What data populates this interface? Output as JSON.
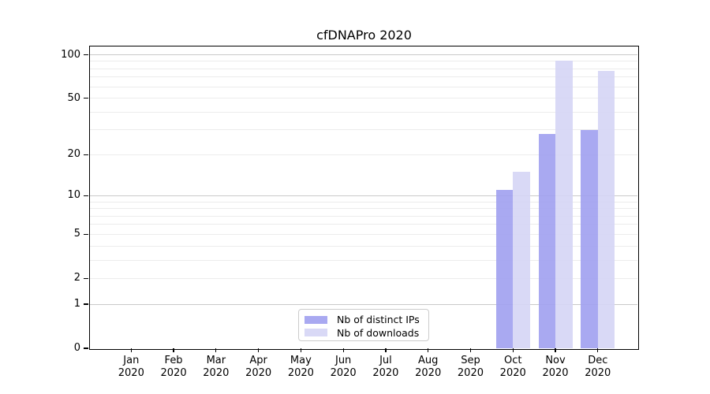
{
  "chart_data": {
    "type": "bar",
    "title": "cfDNAPro 2020",
    "categories": [
      "Jan 2020",
      "Feb 2020",
      "Mar 2020",
      "Apr 2020",
      "May 2020",
      "Jun 2020",
      "Jul 2020",
      "Aug 2020",
      "Sep 2020",
      "Oct 2020",
      "Nov 2020",
      "Dec 2020"
    ],
    "series": [
      {
        "name": "Nb of distinct IPs",
        "color": "#a0a0f0",
        "opacity": 0.9,
        "values": [
          0,
          0,
          0,
          0,
          0,
          0,
          0,
          0,
          0,
          11,
          28,
          30
        ]
      },
      {
        "name": "Nb of downloads",
        "color": "#d5d5f5",
        "opacity": 0.9,
        "values": [
          0,
          0,
          0,
          0,
          0,
          0,
          0,
          0,
          0,
          15,
          91,
          77
        ]
      }
    ],
    "xlabel": "",
    "ylabel": "",
    "yscale": "log1p",
    "ylim": [
      0,
      116
    ],
    "yticks": [
      0,
      1,
      2,
      5,
      10,
      20,
      50,
      100
    ],
    "major_gridlines": [
      1,
      10,
      100
    ],
    "minor_gridlines": [
      2,
      3,
      4,
      5,
      6,
      7,
      8,
      9,
      20,
      30,
      40,
      50,
      60,
      70,
      80,
      90
    ],
    "grid": true,
    "legend_position": "lower center"
  },
  "colors": {
    "axis": "#000000",
    "major_grid": "#c9c9c9",
    "minor_grid": "#ececec",
    "legend_border": "#cccccc",
    "tick_label": "#000000"
  }
}
